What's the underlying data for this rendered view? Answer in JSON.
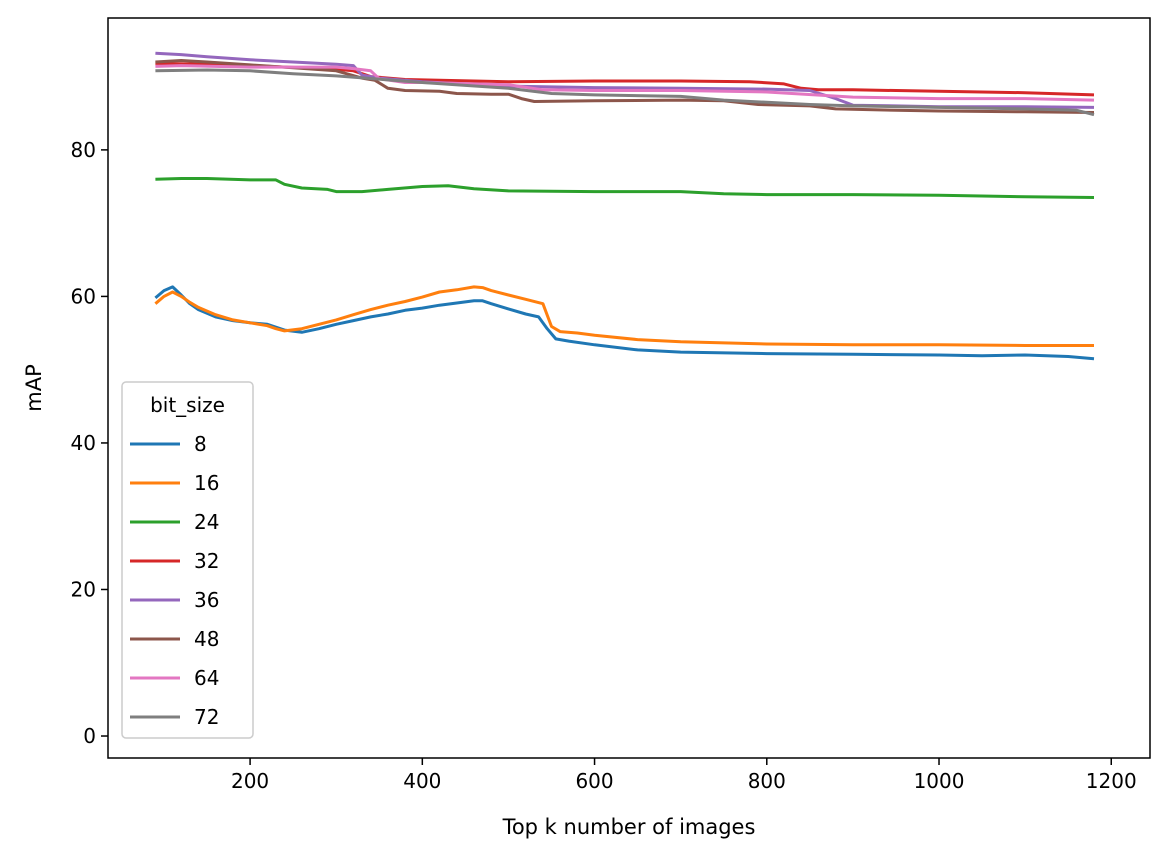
{
  "chart_data": {
    "type": "line",
    "title": "",
    "xlabel": "Top k number of images",
    "ylabel": "mAP",
    "xlim": [
      35,
      1245
    ],
    "ylim": [
      -3,
      98
    ],
    "xticks": [
      200,
      400,
      600,
      800,
      1000,
      1200
    ],
    "xtick_labels": [
      "200",
      "400",
      "600",
      "800",
      "1000",
      "1200"
    ],
    "yticks": [
      0,
      20,
      40,
      60,
      80
    ],
    "ytick_labels": [
      "0",
      "20",
      "40",
      "60",
      "80"
    ],
    "grid": false,
    "legend": {
      "title": "bit_size",
      "placement": "lower-left"
    },
    "series": [
      {
        "name": "8",
        "color": "#1f77b4",
        "points": [
          [
            90,
            59.8
          ],
          [
            100,
            60.8
          ],
          [
            110,
            61.3
          ],
          [
            120,
            60.2
          ],
          [
            130,
            59.0
          ],
          [
            140,
            58.2
          ],
          [
            160,
            57.2
          ],
          [
            180,
            56.7
          ],
          [
            200,
            56.4
          ],
          [
            220,
            56.2
          ],
          [
            230,
            55.8
          ],
          [
            240,
            55.4
          ],
          [
            260,
            55.1
          ],
          [
            280,
            55.6
          ],
          [
            300,
            56.2
          ],
          [
            320,
            56.7
          ],
          [
            340,
            57.2
          ],
          [
            360,
            57.6
          ],
          [
            380,
            58.1
          ],
          [
            400,
            58.4
          ],
          [
            420,
            58.8
          ],
          [
            440,
            59.1
          ],
          [
            460,
            59.4
          ],
          [
            470,
            59.4
          ],
          [
            480,
            59.0
          ],
          [
            500,
            58.3
          ],
          [
            520,
            57.6
          ],
          [
            535,
            57.2
          ],
          [
            545,
            55.6
          ],
          [
            555,
            54.2
          ],
          [
            570,
            53.9
          ],
          [
            600,
            53.4
          ],
          [
            650,
            52.7
          ],
          [
            700,
            52.4
          ],
          [
            800,
            52.2
          ],
          [
            900,
            52.1
          ],
          [
            1000,
            52.0
          ],
          [
            1050,
            51.9
          ],
          [
            1100,
            52.0
          ],
          [
            1150,
            51.8
          ],
          [
            1180,
            51.5
          ]
        ]
      },
      {
        "name": "16",
        "color": "#ff7f0e",
        "points": [
          [
            90,
            59.0
          ],
          [
            100,
            60.0
          ],
          [
            110,
            60.6
          ],
          [
            120,
            60.0
          ],
          [
            130,
            59.2
          ],
          [
            140,
            58.5
          ],
          [
            160,
            57.5
          ],
          [
            180,
            56.8
          ],
          [
            200,
            56.4
          ],
          [
            220,
            56.0
          ],
          [
            230,
            55.6
          ],
          [
            240,
            55.3
          ],
          [
            260,
            55.6
          ],
          [
            280,
            56.2
          ],
          [
            300,
            56.8
          ],
          [
            320,
            57.5
          ],
          [
            340,
            58.2
          ],
          [
            360,
            58.8
          ],
          [
            380,
            59.3
          ],
          [
            400,
            59.9
          ],
          [
            420,
            60.6
          ],
          [
            440,
            60.9
          ],
          [
            460,
            61.3
          ],
          [
            470,
            61.2
          ],
          [
            480,
            60.8
          ],
          [
            500,
            60.2
          ],
          [
            520,
            59.6
          ],
          [
            540,
            59.0
          ],
          [
            550,
            55.9
          ],
          [
            560,
            55.2
          ],
          [
            580,
            55.0
          ],
          [
            600,
            54.7
          ],
          [
            650,
            54.1
          ],
          [
            700,
            53.8
          ],
          [
            800,
            53.5
          ],
          [
            900,
            53.4
          ],
          [
            1000,
            53.4
          ],
          [
            1100,
            53.3
          ],
          [
            1180,
            53.3
          ]
        ]
      },
      {
        "name": "24",
        "color": "#2ca02c",
        "points": [
          [
            90,
            76.0
          ],
          [
            120,
            76.1
          ],
          [
            150,
            76.1
          ],
          [
            200,
            75.9
          ],
          [
            230,
            75.9
          ],
          [
            240,
            75.3
          ],
          [
            260,
            74.8
          ],
          [
            290,
            74.6
          ],
          [
            300,
            74.3
          ],
          [
            330,
            74.3
          ],
          [
            360,
            74.6
          ],
          [
            400,
            75.0
          ],
          [
            430,
            75.1
          ],
          [
            460,
            74.7
          ],
          [
            500,
            74.4
          ],
          [
            600,
            74.3
          ],
          [
            700,
            74.3
          ],
          [
            750,
            74.0
          ],
          [
            800,
            73.9
          ],
          [
            900,
            73.9
          ],
          [
            1000,
            73.8
          ],
          [
            1100,
            73.6
          ],
          [
            1180,
            73.5
          ]
        ]
      },
      {
        "name": "32",
        "color": "#d62728",
        "points": [
          [
            90,
            91.8
          ],
          [
            150,
            91.7
          ],
          [
            200,
            91.5
          ],
          [
            300,
            91.0
          ],
          [
            320,
            90.8
          ],
          [
            340,
            90.0
          ],
          [
            380,
            89.6
          ],
          [
            500,
            89.3
          ],
          [
            600,
            89.4
          ],
          [
            700,
            89.4
          ],
          [
            780,
            89.3
          ],
          [
            820,
            89.0
          ],
          [
            840,
            88.4
          ],
          [
            860,
            88.2
          ],
          [
            900,
            88.2
          ],
          [
            1000,
            88.0
          ],
          [
            1100,
            87.8
          ],
          [
            1180,
            87.5
          ]
        ]
      },
      {
        "name": "36",
        "color": "#9467bd",
        "points": [
          [
            90,
            93.2
          ],
          [
            120,
            93.0
          ],
          [
            150,
            92.7
          ],
          [
            200,
            92.3
          ],
          [
            250,
            92.0
          ],
          [
            300,
            91.7
          ],
          [
            320,
            91.5
          ],
          [
            330,
            90.2
          ],
          [
            350,
            89.8
          ],
          [
            400,
            89.3
          ],
          [
            500,
            88.7
          ],
          [
            600,
            88.5
          ],
          [
            700,
            88.4
          ],
          [
            800,
            88.3
          ],
          [
            850,
            88.1
          ],
          [
            880,
            87.0
          ],
          [
            900,
            86.1
          ],
          [
            950,
            86.0
          ],
          [
            1000,
            85.9
          ],
          [
            1100,
            85.9
          ],
          [
            1180,
            85.8
          ]
        ]
      },
      {
        "name": "48",
        "color": "#8c564b",
        "points": [
          [
            90,
            92.0
          ],
          [
            120,
            92.2
          ],
          [
            150,
            92.0
          ],
          [
            200,
            91.6
          ],
          [
            250,
            91.2
          ],
          [
            300,
            90.8
          ],
          [
            330,
            89.8
          ],
          [
            345,
            89.5
          ],
          [
            360,
            88.4
          ],
          [
            380,
            88.1
          ],
          [
            420,
            88.0
          ],
          [
            440,
            87.7
          ],
          [
            480,
            87.6
          ],
          [
            500,
            87.6
          ],
          [
            515,
            87.0
          ],
          [
            530,
            86.6
          ],
          [
            600,
            86.7
          ],
          [
            700,
            86.8
          ],
          [
            750,
            86.7
          ],
          [
            790,
            86.2
          ],
          [
            850,
            86.0
          ],
          [
            880,
            85.6
          ],
          [
            950,
            85.4
          ],
          [
            1000,
            85.3
          ],
          [
            1100,
            85.2
          ],
          [
            1180,
            85.1
          ]
        ]
      },
      {
        "name": "64",
        "color": "#e377c2",
        "points": [
          [
            90,
            91.4
          ],
          [
            120,
            91.5
          ],
          [
            200,
            91.3
          ],
          [
            300,
            91.3
          ],
          [
            320,
            91.1
          ],
          [
            340,
            90.8
          ],
          [
            350,
            89.7
          ],
          [
            380,
            89.2
          ],
          [
            400,
            89.2
          ],
          [
            500,
            88.9
          ],
          [
            540,
            88.2
          ],
          [
            600,
            88.1
          ],
          [
            700,
            88.1
          ],
          [
            800,
            87.9
          ],
          [
            900,
            87.2
          ],
          [
            1000,
            87.0
          ],
          [
            1100,
            87.0
          ],
          [
            1180,
            86.8
          ]
        ]
      },
      {
        "name": "72",
        "color": "#7f7f7f",
        "points": [
          [
            90,
            90.8
          ],
          [
            150,
            90.9
          ],
          [
            200,
            90.8
          ],
          [
            250,
            90.4
          ],
          [
            300,
            90.1
          ],
          [
            400,
            89.2
          ],
          [
            500,
            88.4
          ],
          [
            550,
            87.7
          ],
          [
            600,
            87.5
          ],
          [
            700,
            87.3
          ],
          [
            750,
            86.8
          ],
          [
            800,
            86.5
          ],
          [
            850,
            86.2
          ],
          [
            900,
            86.0
          ],
          [
            1000,
            85.8
          ],
          [
            1100,
            85.6
          ],
          [
            1160,
            85.4
          ],
          [
            1180,
            84.8
          ]
        ]
      }
    ]
  }
}
